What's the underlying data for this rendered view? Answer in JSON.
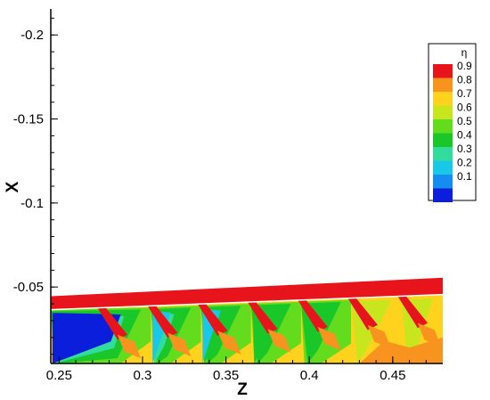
{
  "chart_data": {
    "type": "heatmap",
    "title": "",
    "xlabel": "Z",
    "ylabel": "X",
    "xlim": [
      0.245,
      0.48
    ],
    "ylim": [
      -0.0045,
      -0.2155
    ],
    "x_ticks": [
      0.25,
      0.3,
      0.35,
      0.4,
      0.45
    ],
    "x_tick_labels": [
      "0.25",
      "0.3",
      "0.35",
      "0.4",
      "0.45"
    ],
    "y_ticks": [
      -0.2,
      -0.15,
      -0.1,
      -0.05
    ],
    "y_tick_labels": [
      "-0.2",
      "-0.15",
      "-0.1",
      "-0.05"
    ],
    "grid": false,
    "legend": {
      "title": "η",
      "placement": "top-right",
      "levels": [
        {
          "value": 0.9,
          "label": "0.9",
          "color": "#e8141c"
        },
        {
          "value": 0.8,
          "label": "0.8",
          "color": "#f7931e"
        },
        {
          "value": 0.7,
          "label": "0.7",
          "color": "#ffd21e"
        },
        {
          "value": 0.6,
          "label": "0.6",
          "color": "#c8e61e"
        },
        {
          "value": 0.5,
          "label": "0.5",
          "color": "#64dc1e"
        },
        {
          "value": 0.4,
          "label": "0.4",
          "color": "#19c828"
        },
        {
          "value": 0.3,
          "label": "0.3",
          "color": "#32dc9c"
        },
        {
          "value": 0.2,
          "label": "0.2",
          "color": "#19c8e6"
        },
        {
          "value": 0.1,
          "label": "0.1",
          "color": "#148cf0"
        },
        {
          "value": 0.0,
          "label": "",
          "color": "#0a1edc"
        }
      ]
    },
    "band": {
      "level": 0.9,
      "lower_edge": [
        {
          "z": 0.245,
          "x": -0.0365
        },
        {
          "z": 0.48,
          "x": -0.0455
        }
      ],
      "upper_edge": [
        {
          "z": 0.245,
          "x": -0.0445
        },
        {
          "z": 0.48,
          "x": -0.0555
        }
      ]
    },
    "holes_z": [
      0.275,
      0.305,
      0.335,
      0.365,
      0.395,
      0.425,
      0.455
    ],
    "background_color": "#ffd21e"
  }
}
